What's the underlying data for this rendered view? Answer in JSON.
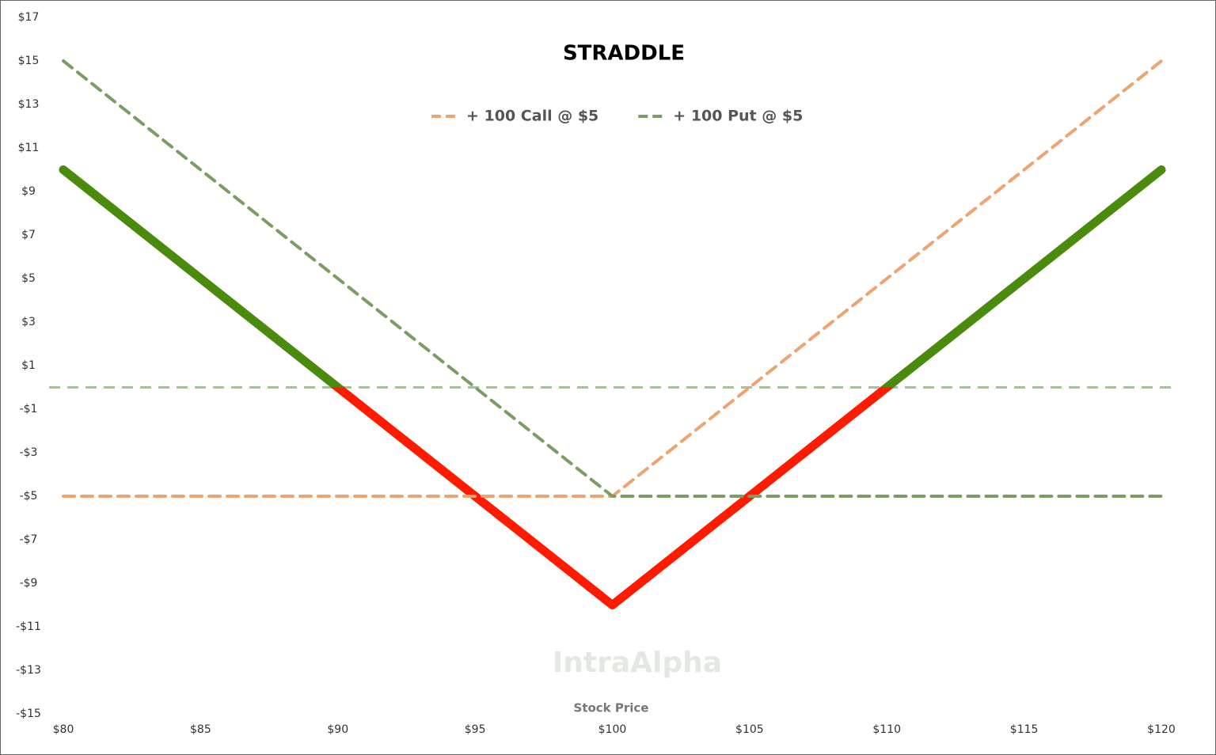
{
  "chart_data": {
    "type": "line",
    "title": "STRADDLE",
    "x_label": "Stock Price",
    "watermark": "IntraAlpha",
    "x": [
      80,
      100,
      120
    ],
    "series": [
      {
        "values": [
          10,
          -10,
          10
        ],
        "color": "#4a8a0c",
        "color_negative": "#ff1a00",
        "style": "solid"
      },
      {
        "name": "+ 100 Call @ $5",
        "color": "#f0a36e",
        "values": [
          -5,
          -5,
          15
        ],
        "style": "dashed"
      },
      {
        "name": "+ 100 Put @ $5",
        "color": "#7a9e62",
        "values": [
          15,
          -5,
          -5
        ],
        "style": "dashed"
      }
    ],
    "xlim": [
      80,
      120
    ],
    "xticks": [
      {
        "value": 80,
        "label": "$80"
      },
      {
        "value": 85,
        "label": "$85"
      },
      {
        "value": 90,
        "label": "$90"
      },
      {
        "value": 95,
        "label": "$95"
      },
      {
        "value": 100,
        "label": "$100"
      },
      {
        "value": 105,
        "label": "$105"
      },
      {
        "value": 110,
        "label": "$110"
      },
      {
        "value": 115,
        "label": "$115"
      },
      {
        "value": 120,
        "label": "$120"
      }
    ],
    "ylim": [
      -15,
      17
    ],
    "yticks": [
      {
        "value": 17,
        "label": "$17"
      },
      {
        "value": 15,
        "label": "$15"
      },
      {
        "value": 13,
        "label": "$13"
      },
      {
        "value": 11,
        "label": "$11"
      },
      {
        "value": 9,
        "label": "$9"
      },
      {
        "value": 7,
        "label": "$7"
      },
      {
        "value": 5,
        "label": "$5"
      },
      {
        "value": 3,
        "label": "$3"
      },
      {
        "value": 1,
        "label": "$1"
      },
      {
        "value": -1,
        "label": "-$1"
      },
      {
        "value": -3,
        "label": "-$3"
      },
      {
        "value": -5,
        "label": "-$5"
      },
      {
        "value": -7,
        "label": "-$7"
      },
      {
        "value": -9,
        "label": "-$9"
      },
      {
        "value": -11,
        "label": "-$11"
      },
      {
        "value": -13,
        "label": "-$13"
      },
      {
        "value": -15,
        "label": "-$15"
      }
    ],
    "zero_line": true,
    "grid": false,
    "legend": "top"
  }
}
